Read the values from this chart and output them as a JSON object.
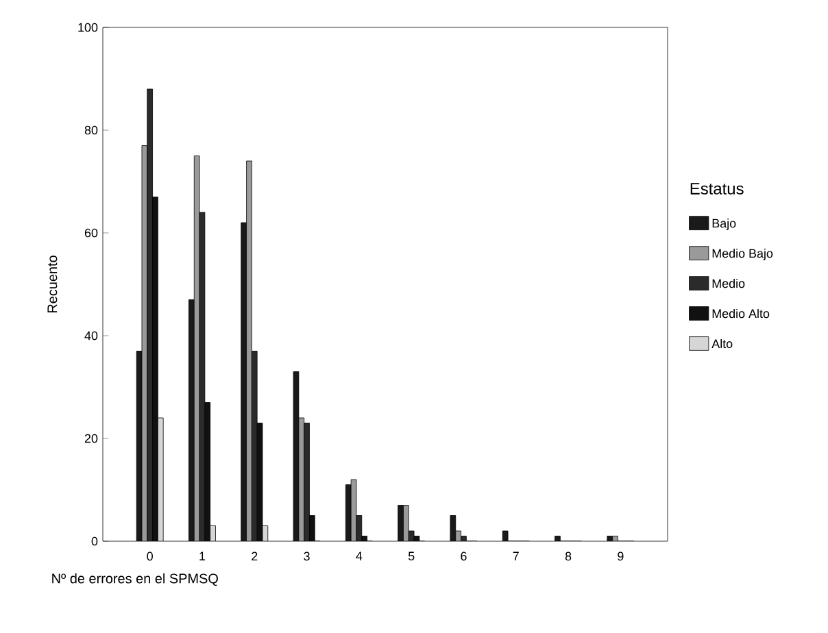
{
  "chart_data": {
    "type": "bar",
    "xlabel": "Nº de errores en el SPMSQ",
    "ylabel": "Recuento",
    "legend_title": "Estatus",
    "categories": [
      "0",
      "1",
      "2",
      "3",
      "4",
      "5",
      "6",
      "7",
      "8",
      "9"
    ],
    "ylim": [
      0,
      100
    ],
    "yticks": [
      0,
      20,
      40,
      60,
      80,
      100
    ],
    "legend": "right",
    "series": [
      {
        "name": "Bajo",
        "color": "#1a1a1a",
        "values": [
          37,
          47,
          62,
          33,
          11,
          7,
          5,
          2,
          1,
          1
        ]
      },
      {
        "name": "Medio Bajo",
        "color": "#9a9a9a",
        "values": [
          77,
          75,
          74,
          24,
          12,
          7,
          2,
          0,
          0,
          1
        ]
      },
      {
        "name": "Medio",
        "color": "#2b2b2b",
        "values": [
          88,
          64,
          37,
          23,
          5,
          2,
          1,
          0,
          0,
          0
        ]
      },
      {
        "name": "Medio Alto",
        "color": "#111111",
        "values": [
          67,
          27,
          23,
          5,
          1,
          1,
          0,
          0,
          0,
          0
        ]
      },
      {
        "name": "Alto",
        "color": "#d6d6d6",
        "values": [
          24,
          3,
          3,
          0,
          0,
          0,
          0,
          0,
          0,
          0
        ]
      }
    ]
  }
}
